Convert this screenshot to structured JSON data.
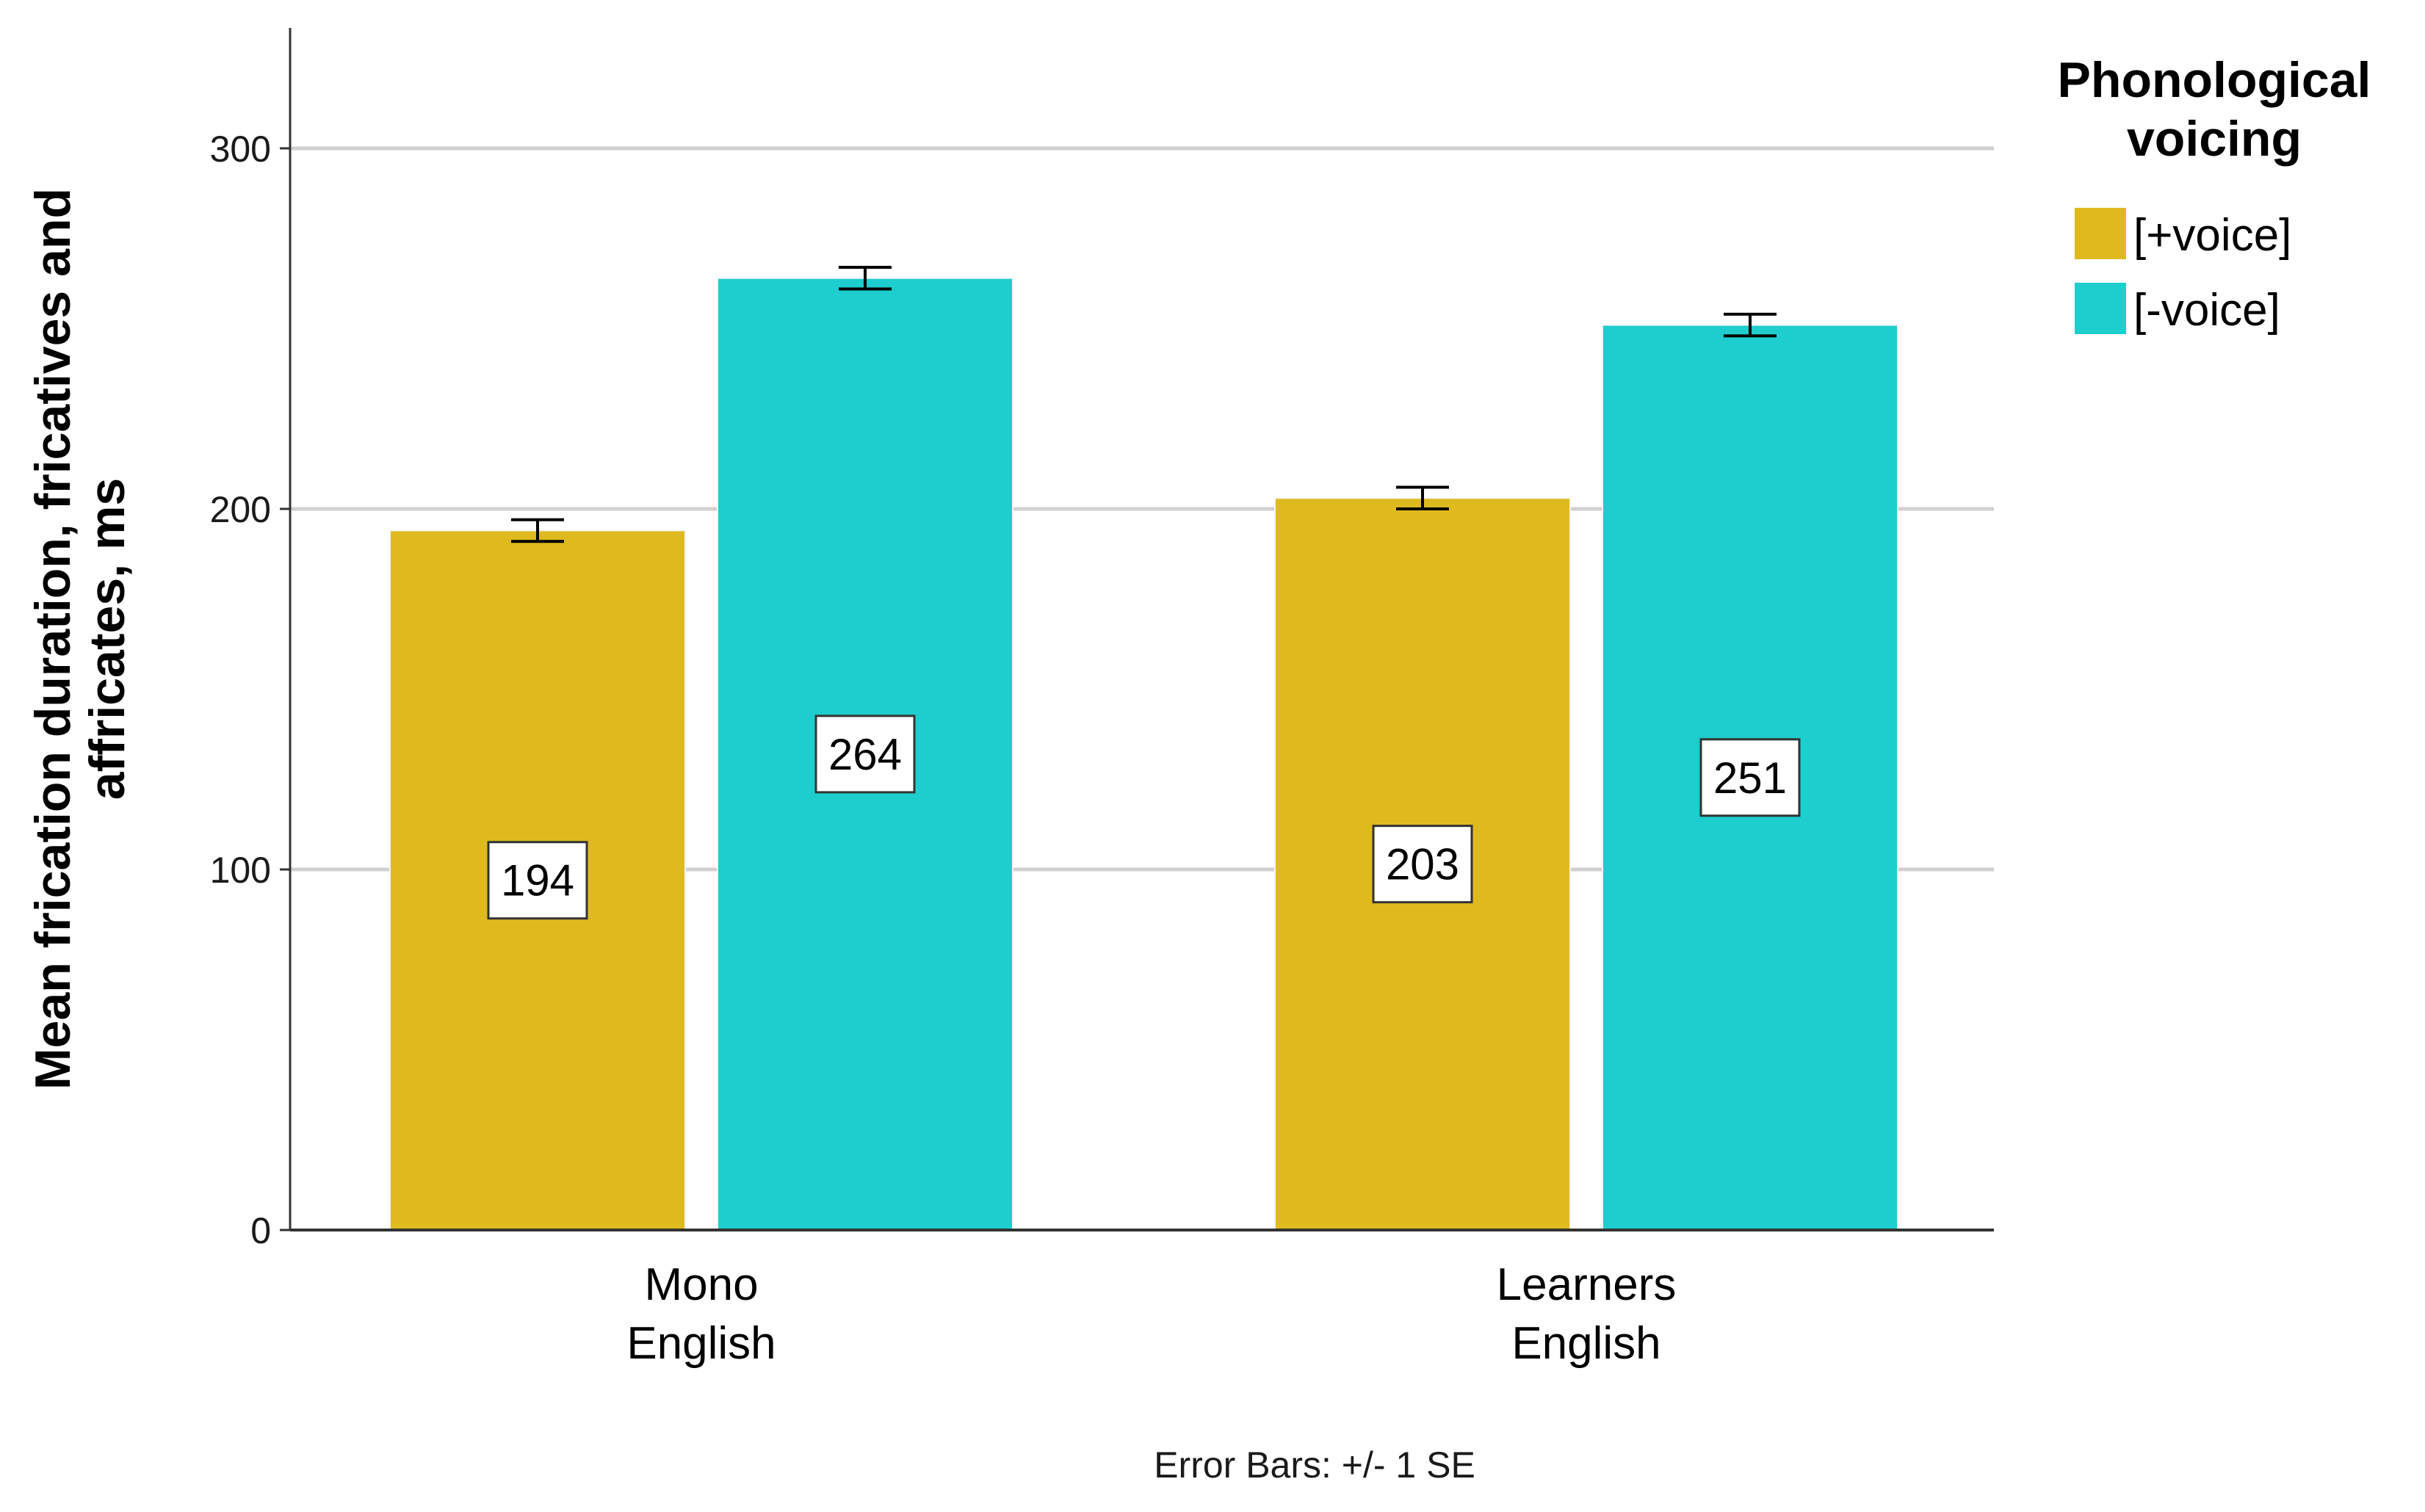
{
  "chart_data": {
    "type": "bar",
    "categories": [
      [
        "Mono",
        "English"
      ],
      [
        "Learners",
        "English"
      ]
    ],
    "series": [
      {
        "name": "[+voice]",
        "color": "#dfba1f",
        "values": [
          194,
          203
        ],
        "se": [
          3,
          3
        ],
        "labels": [
          "194",
          "203"
        ]
      },
      {
        "name": "[-voice]",
        "color": "#1ecdcd",
        "values": [
          264,
          251
        ],
        "se": [
          3,
          3
        ],
        "labels": [
          "264",
          "251"
        ]
      }
    ],
    "ylabel": [
      "Mean frication duration, fricatives and",
      "affricates, ms"
    ],
    "ylim": [
      0,
      333
    ],
    "yticks": [
      0,
      100,
      200,
      300
    ],
    "grid": true,
    "legend": {
      "title": [
        "Phonological",
        "voicing"
      ],
      "position": "top-right"
    },
    "footnote": "Error Bars: +/- 1 SE"
  }
}
